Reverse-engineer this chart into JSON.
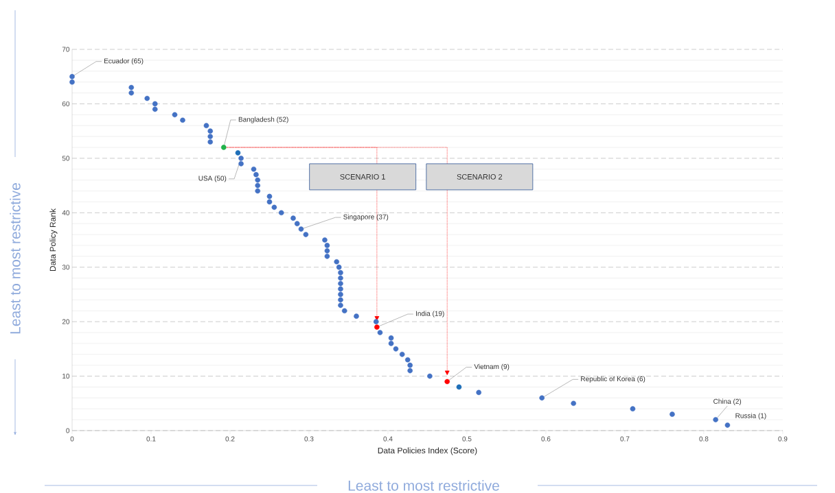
{
  "chart_data": {
    "type": "scatter",
    "xlabel": "Data Policies Index (Score)",
    "ylabel": "Data Policy Rank",
    "xlim": [
      0,
      0.9
    ],
    "ylim": [
      0,
      70
    ],
    "xticks": [
      0,
      0.1,
      0.2,
      0.3,
      0.4,
      0.5,
      0.6,
      0.7,
      0.8,
      0.9
    ],
    "yticks": [
      0,
      10,
      20,
      30,
      40,
      50,
      60,
      70
    ],
    "grid": "y",
    "marker": "circle",
    "series": [
      {
        "color": "#4472c4",
        "x": [
          0,
          0,
          0.075,
          0.075,
          0.095,
          0.105,
          0.105,
          0.13,
          0.14,
          0.17,
          0.175,
          0.175,
          0.175,
          0.214,
          0.214,
          0.23,
          0.233,
          0.235,
          0.235,
          0.235,
          0.25,
          0.25,
          0.256,
          0.265,
          0.28,
          0.285,
          0.29,
          0.296,
          0.32,
          0.323,
          0.323,
          0.323,
          0.335,
          0.338,
          0.34,
          0.34,
          0.34,
          0.34,
          0.34,
          0.34,
          0.34,
          0.345,
          0.36,
          0.385,
          0.39,
          0.404,
          0.404,
          0.41,
          0.418,
          0.425,
          0.428,
          0.428,
          0.453,
          0.515,
          0.595,
          0.635,
          0.71,
          0.76,
          0.815,
          0.83
        ],
        "values": [
          65,
          64,
          63,
          62,
          61,
          60,
          59,
          58,
          57,
          56,
          55,
          54,
          53,
          50,
          49,
          48,
          47,
          46,
          45,
          44,
          43,
          42,
          41,
          40,
          39,
          38,
          37,
          36,
          35,
          34,
          33,
          32,
          31,
          30,
          29,
          28,
          27,
          26,
          25,
          24,
          23,
          22,
          21,
          20,
          18,
          17,
          16,
          15,
          14,
          13,
          12,
          11,
          10,
          7,
          6,
          5,
          4,
          3,
          2,
          1
        ]
      },
      {
        "color": "#21b24b",
        "x": [
          0.192
        ],
        "values": [
          52
        ]
      },
      {
        "color": "#1f6fb8",
        "x": [
          0.21,
          0.49
        ],
        "values": [
          51,
          8
        ]
      },
      {
        "color": "#ff0000",
        "x": [
          0.386,
          0.475
        ],
        "values": [
          19,
          9
        ]
      }
    ],
    "annotations": [
      {
        "text": "Ecuador (65)",
        "x": 0,
        "y": 65
      },
      {
        "text": "Bangladesh (52)",
        "x": 0.192,
        "y": 52
      },
      {
        "text": "USA (50)",
        "x": 0.214,
        "y": 50
      },
      {
        "text": "Singapore (37)",
        "x": 0.29,
        "y": 37
      },
      {
        "text": "India (19)",
        "x": 0.386,
        "y": 19
      },
      {
        "text": "Vietnam (9)",
        "x": 0.475,
        "y": 9
      },
      {
        "text": "Republic of Korea (6)",
        "x": 0.595,
        "y": 6
      },
      {
        "text": "China (2)",
        "x": 0.815,
        "y": 2
      },
      {
        "text": "Russia (1)",
        "x": 0.83,
        "y": 1
      },
      "SCENARIO 1",
      "SCENARIO 2",
      "Least to most restrictive",
      "Least to most restrictive"
    ]
  }
}
